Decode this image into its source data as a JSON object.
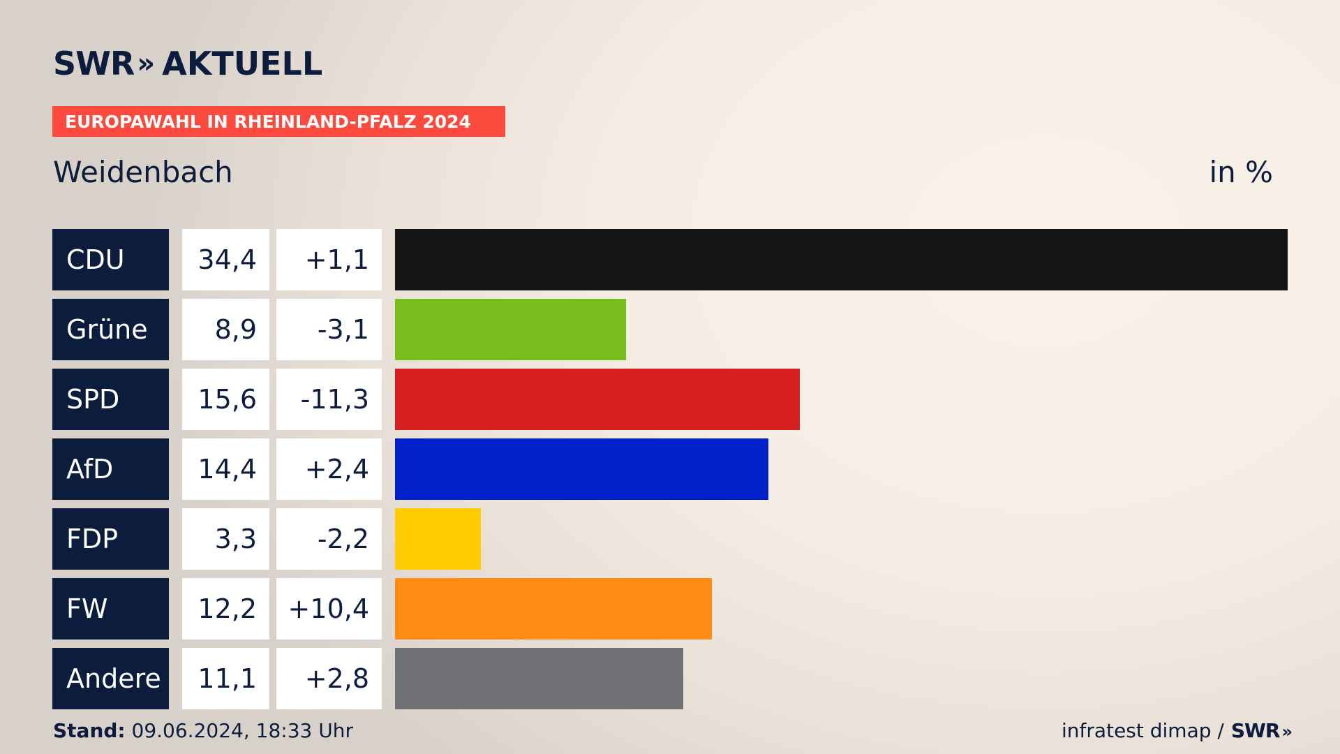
{
  "header": {
    "brand_swr": "SWR",
    "brand_chevron": "»",
    "brand_aktuell": "AKTUELL",
    "banner": "EUROPAWAHL IN RHEINLAND-PFALZ 2024",
    "place": "Weidenbach",
    "unit": "in %"
  },
  "chart_data": {
    "type": "bar",
    "orientation": "horizontal",
    "categories": [
      "CDU",
      "Grüne",
      "SPD",
      "AfD",
      "FDP",
      "FW",
      "Andere"
    ],
    "values": [
      34.4,
      8.9,
      15.6,
      14.4,
      3.3,
      12.2,
      11.1
    ],
    "values_label": [
      "34,4",
      "8,9",
      "15,6",
      "14,4",
      "3,3",
      "12,2",
      "11,1"
    ],
    "changes_label": [
      "+1,1",
      "-3,1",
      "-11,3",
      "+2,4",
      "-2,2",
      "+10,4",
      "+2,8"
    ],
    "colors": [
      "#141414",
      "#7abd1e",
      "#d61f1f",
      "#0021c8",
      "#ffcc00",
      "#ff8c14",
      "#707174"
    ],
    "xlim": [
      0,
      34.4
    ]
  },
  "footer": {
    "stand_label": "Stand:",
    "stand_value": " 09.06.2024, 18:33 Uhr",
    "source": "infratest dimap /",
    "source_brand": "SWR",
    "source_chevron": "»"
  }
}
